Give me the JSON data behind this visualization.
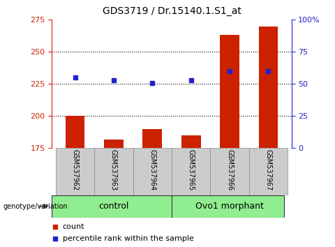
{
  "title": "GDS3719 / Dr.15140.1.S1_at",
  "samples": [
    "GSM537962",
    "GSM537963",
    "GSM537964",
    "GSM537965",
    "GSM537966",
    "GSM537967"
  ],
  "counts": [
    200,
    182,
    190,
    185,
    263,
    270
  ],
  "percentile_pct": [
    55,
    53,
    51,
    53,
    60,
    60
  ],
  "ylim_left": [
    175,
    275
  ],
  "ylim_right": [
    0,
    100
  ],
  "yticks_left": [
    175,
    200,
    225,
    250,
    275
  ],
  "yticks_right": [
    0,
    25,
    50,
    75,
    100
  ],
  "bar_color": "#cc2200",
  "dot_color": "#2222cc",
  "bar_width": 0.5,
  "background_xtick": "#cccccc",
  "title_fontsize": 10,
  "tick_fontsize": 8,
  "legend_fontsize": 8,
  "dotted_grid_color": "#000000",
  "group_color": "#90ee90",
  "control_label": "control",
  "ovo_label": "Ovo1 morphant",
  "geno_label": "genotype/variation",
  "legend_count": "count",
  "legend_pct": "percentile rank within the sample"
}
